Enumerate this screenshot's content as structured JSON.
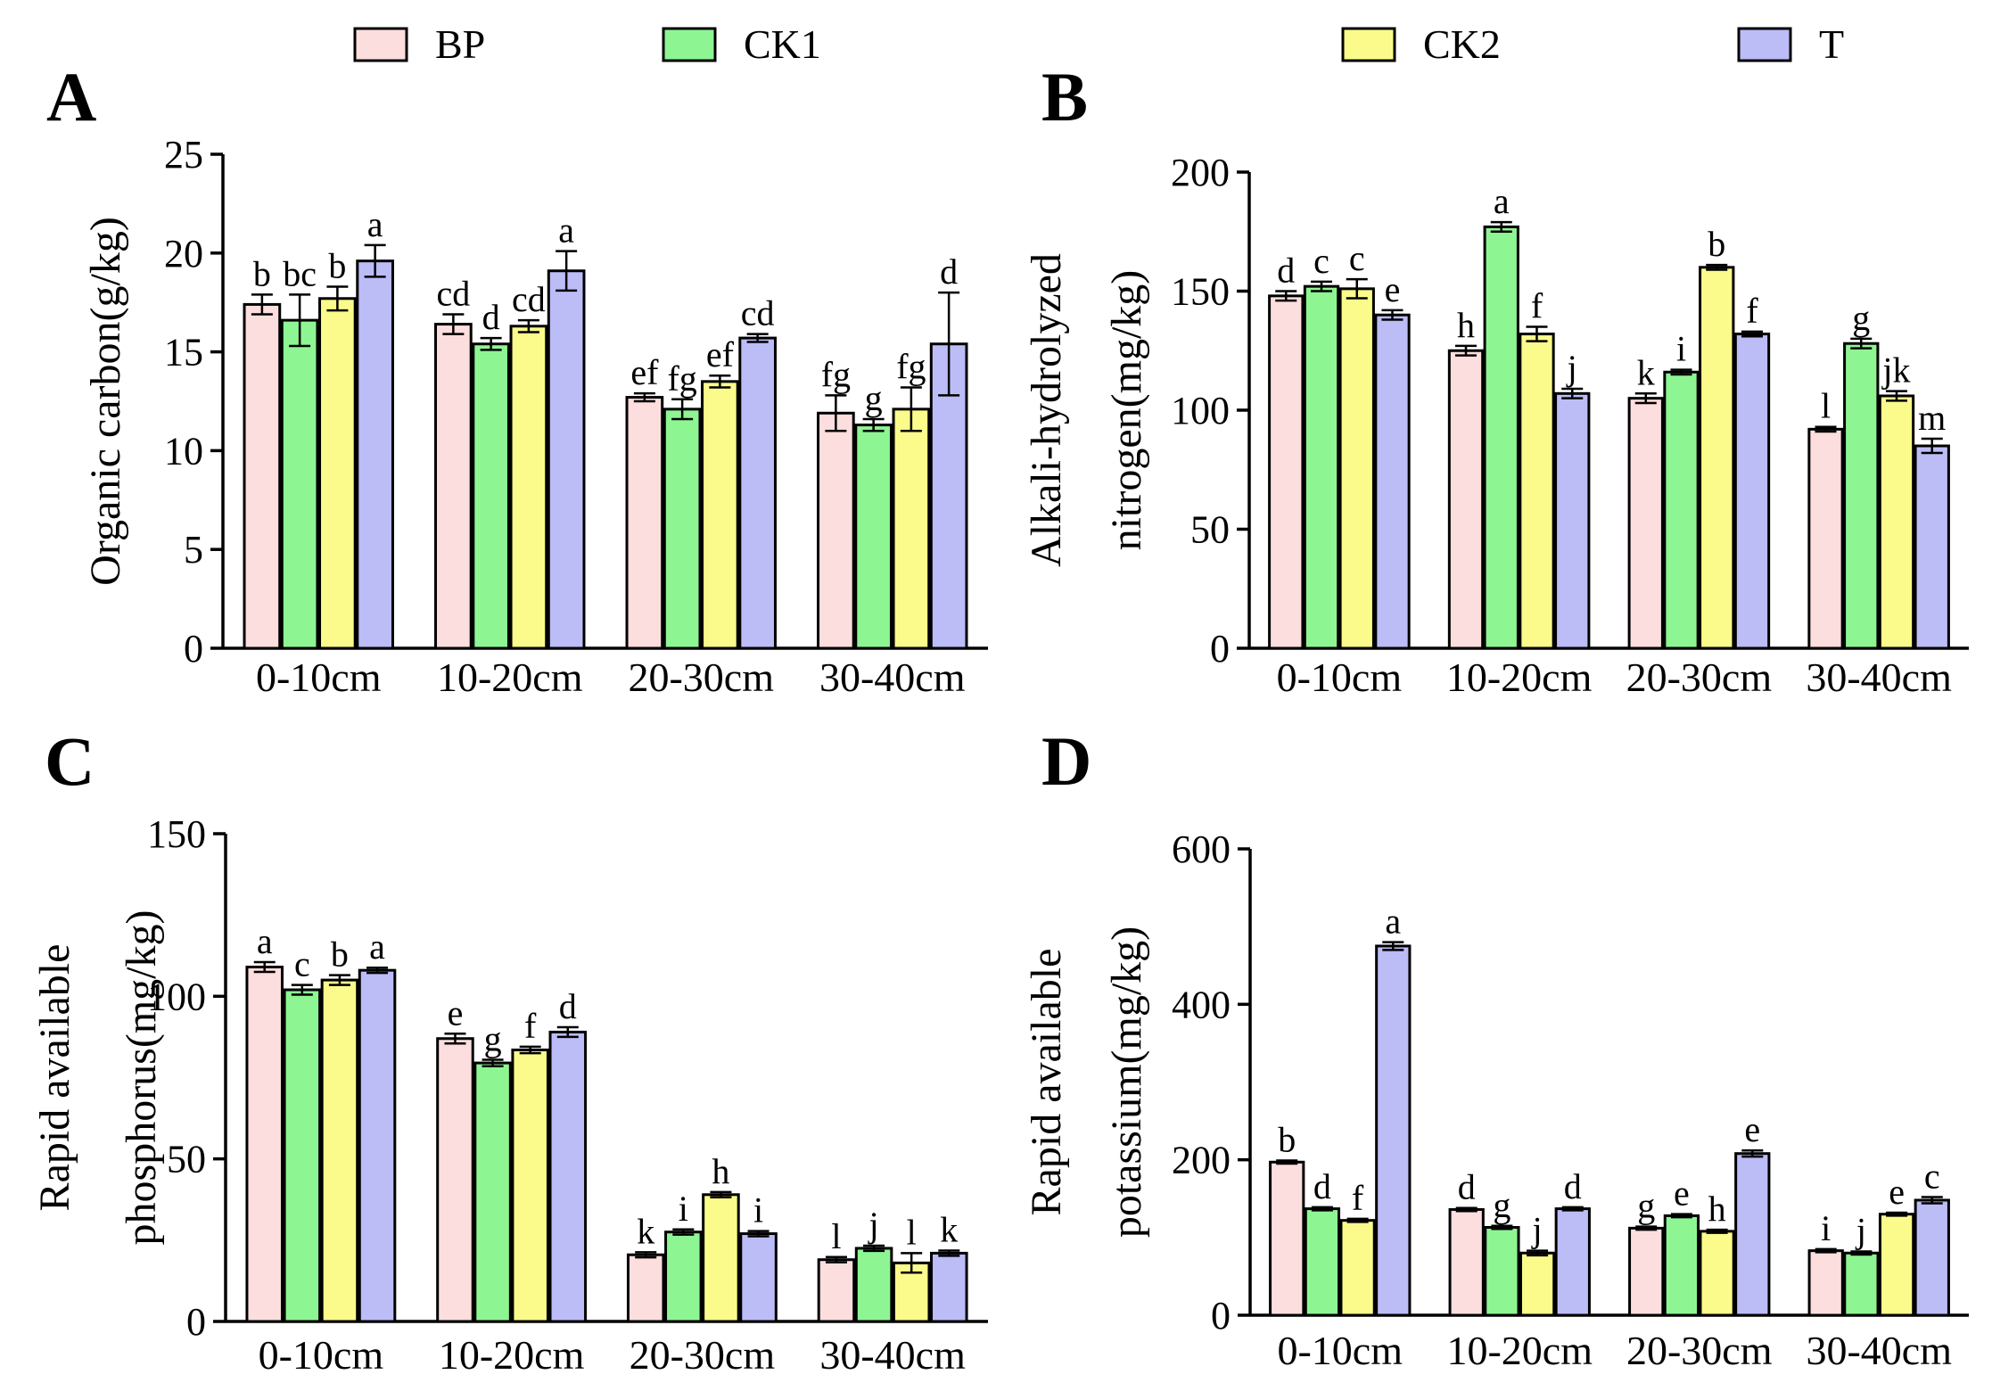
{
  "legend": [
    {
      "name": "BP",
      "color": "#fcdede"
    },
    {
      "name": "CK1",
      "color": "#8ef593"
    },
    {
      "name": "CK2",
      "color": "#fbfb8b"
    },
    {
      "name": "T",
      "color": "#bcbcf7"
    }
  ],
  "chart_data": [
    {
      "panel": "A",
      "type": "bar",
      "categories": [
        "0-10cm",
        "10-20cm",
        "20-30cm",
        "30-40cm"
      ],
      "ylabel_lines": [
        "Organic carbon(g/kg)"
      ],
      "ylim": [
        0,
        25
      ],
      "yticks": [
        0,
        5,
        10,
        15,
        20,
        25
      ],
      "series": [
        {
          "name": "BP",
          "values": [
            17.4,
            16.4,
            12.7,
            11.9
          ],
          "errors": [
            0.5,
            0.5,
            0.2,
            0.9
          ],
          "labels": [
            "b",
            "cd",
            "ef",
            "fg"
          ]
        },
        {
          "name": "CK1",
          "values": [
            16.6,
            15.4,
            12.1,
            11.3
          ],
          "errors": [
            1.3,
            0.3,
            0.5,
            0.3
          ],
          "labels": [
            "bc",
            "d",
            "fg",
            "g"
          ]
        },
        {
          "name": "CK2",
          "values": [
            17.7,
            16.3,
            13.5,
            12.1
          ],
          "errors": [
            0.6,
            0.3,
            0.3,
            1.1
          ],
          "labels": [
            "b",
            "cd",
            "ef",
            "fg"
          ]
        },
        {
          "name": "T",
          "values": [
            19.6,
            19.1,
            15.7,
            15.4
          ],
          "errors": [
            0.8,
            1.0,
            0.2,
            2.6
          ],
          "labels": [
            "a",
            "a",
            "cd",
            "d"
          ]
        }
      ]
    },
    {
      "panel": "B",
      "type": "bar",
      "categories": [
        "0-10cm",
        "10-20cm",
        "20-30cm",
        "30-40cm"
      ],
      "ylabel_lines": [
        "Alkali-hydrolyzed",
        "nitrogen(mg/kg)"
      ],
      "ylim": [
        0,
        200
      ],
      "yticks": [
        0,
        50,
        100,
        150,
        200
      ],
      "series": [
        {
          "name": "BP",
          "values": [
            148,
            125,
            105,
            92
          ],
          "errors": [
            2,
            2,
            2,
            1
          ],
          "labels": [
            "d",
            "h",
            "k",
            "l"
          ]
        },
        {
          "name": "CK1",
          "values": [
            152,
            177,
            116,
            128
          ],
          "errors": [
            2,
            2,
            1,
            2
          ],
          "labels": [
            "c",
            "a",
            "i",
            "g"
          ]
        },
        {
          "name": "CK2",
          "values": [
            151,
            132,
            160,
            106
          ],
          "errors": [
            4,
            3,
            1,
            2
          ],
          "labels": [
            "c",
            "f",
            "b",
            "jk"
          ]
        },
        {
          "name": "T",
          "values": [
            140,
            107,
            132,
            85
          ],
          "errors": [
            2,
            2,
            1,
            3
          ],
          "labels": [
            "e",
            "j",
            "f",
            "m"
          ]
        }
      ]
    },
    {
      "panel": "C",
      "type": "bar",
      "categories": [
        "0-10cm",
        "10-20cm",
        "20-30cm",
        "30-40cm"
      ],
      "ylabel_lines": [
        "Rapid available",
        "phosphorus(mg/kg)"
      ],
      "ylim": [
        0,
        150
      ],
      "yticks": [
        0,
        50,
        100,
        150
      ],
      "series": [
        {
          "name": "BP",
          "values": [
            109,
            87,
            20.5,
            19
          ],
          "errors": [
            1.5,
            1.5,
            0.8,
            0.8
          ],
          "labels": [
            "a",
            "e",
            "k",
            "l"
          ]
        },
        {
          "name": "CK1",
          "values": [
            102,
            79.5,
            27.5,
            22.5
          ],
          "errors": [
            1.5,
            1,
            0.8,
            0.8
          ],
          "labels": [
            "c",
            "g",
            "i",
            "j"
          ]
        },
        {
          "name": "CK2",
          "values": [
            105,
            83.5,
            39,
            18
          ],
          "errors": [
            1.5,
            1,
            0.8,
            3
          ],
          "labels": [
            "b",
            "f",
            "h",
            "l"
          ]
        },
        {
          "name": "T",
          "values": [
            108,
            89,
            27,
            21
          ],
          "errors": [
            0.8,
            1.5,
            0.8,
            0.8
          ],
          "labels": [
            "a",
            "d",
            "i",
            "k"
          ]
        }
      ]
    },
    {
      "panel": "D",
      "type": "bar",
      "categories": [
        "0-10cm",
        "10-20cm",
        "20-30cm",
        "30-40cm"
      ],
      "ylabel_lines": [
        "Rapid available",
        "potassium(mg/kg)"
      ],
      "ylim": [
        0,
        600
      ],
      "yticks": [
        0,
        200,
        400,
        600
      ],
      "series": [
        {
          "name": "BP",
          "values": [
            197,
            136,
            112,
            83
          ],
          "errors": [
            2,
            2,
            2,
            2
          ],
          "labels": [
            "b",
            "d",
            "g",
            "i"
          ]
        },
        {
          "name": "CK1",
          "values": [
            137,
            113,
            128,
            80
          ],
          "errors": [
            2,
            2,
            2,
            2
          ],
          "labels": [
            "d",
            "g",
            "e",
            "j"
          ]
        },
        {
          "name": "CK2",
          "values": [
            122,
            80,
            108,
            130
          ],
          "errors": [
            2,
            3,
            2,
            2
          ],
          "labels": [
            "f",
            "j",
            "h",
            "e"
          ]
        },
        {
          "name": "T",
          "values": [
            475,
            137,
            208,
            148
          ],
          "errors": [
            5,
            2,
            4,
            4
          ],
          "labels": [
            "a",
            "d",
            "e",
            "c"
          ]
        }
      ]
    }
  ]
}
